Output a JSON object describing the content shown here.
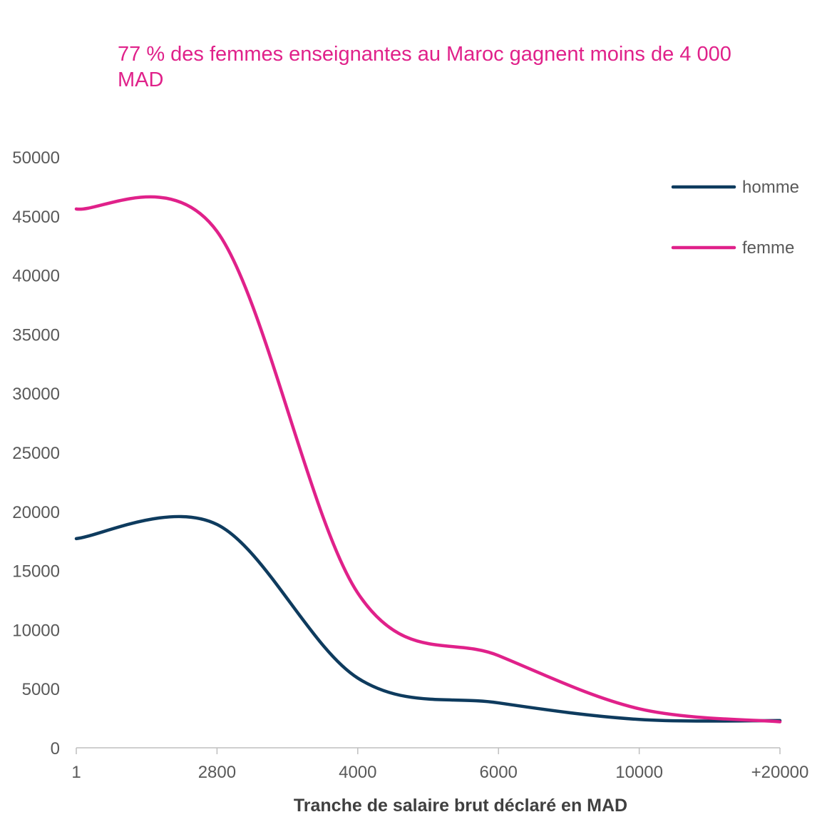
{
  "chart_data": {
    "type": "line",
    "title": "77 % des femmes enseignantes au Maroc gagnent moins de 4 000 MAD",
    "xlabel": "Tranche de salaire brut déclaré en MAD",
    "ylabel": "",
    "categories": [
      "1",
      "2800",
      "4000",
      "6000",
      "10000",
      "+20000"
    ],
    "yticks": [
      "0",
      "5000",
      "10000",
      "15000",
      "20000",
      "25000",
      "30000",
      "35000",
      "40000",
      "45000",
      "50000"
    ],
    "ylim": [
      0,
      50000
    ],
    "smooth": true,
    "grid": false,
    "legend_position": "top-right",
    "series": [
      {
        "name": "homme",
        "color": "#0e3b5e",
        "values": [
          17700,
          18900,
          5900,
          3800,
          2400,
          2300
        ]
      },
      {
        "name": "femme",
        "color": "#e0218a",
        "values": [
          45600,
          43700,
          13100,
          7800,
          3300,
          2200
        ]
      }
    ]
  }
}
